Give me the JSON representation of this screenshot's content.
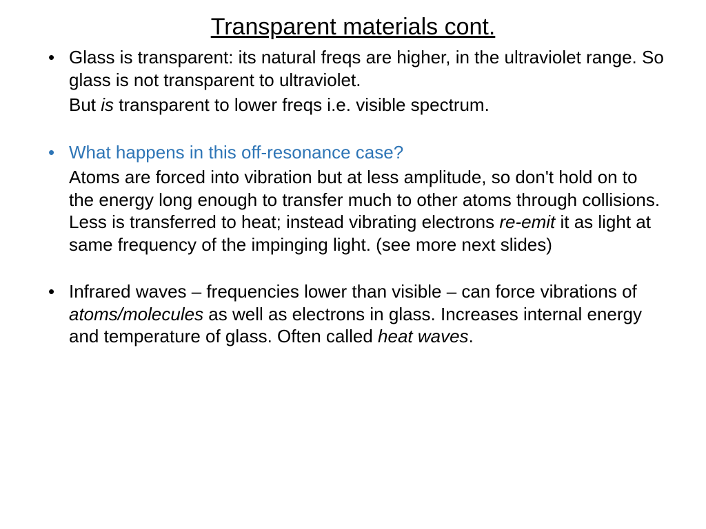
{
  "colors": {
    "background": "#ffffff",
    "text": "#000000",
    "accent": "#2e75b6"
  },
  "typography": {
    "title_fontsize": 34,
    "body_fontsize": 26,
    "font_family": "Arial"
  },
  "title": "Transparent materials cont.",
  "bullets": {
    "b1_line1": "Glass is transparent: its natural freqs are higher, in the ultraviolet range. So glass is not transparent to ultraviolet.",
    "b1_line2a": "But ",
    "b1_line2_italic": "is",
    "b1_line2b": " transparent to lower freqs i.e. visible spectrum.",
    "b2_question": "What happens in this off-resonance case?",
    "b2_answer_a": "Atoms are forced into vibration but at less amplitude, so don't hold on to the energy long enough to transfer much to other atoms through collisions. Less is transferred to heat; instead vibrating electrons ",
    "b2_answer_italic": "re-emit",
    "b2_answer_b": " it as light at same frequency of the impinging light. (see more next slides)",
    "b3_a": "Infrared waves – frequencies lower than visible – can force vibrations of ",
    "b3_italic1": "atoms/molecules",
    "b3_b": " as well as electrons in glass. Increases internal energy and temperature of glass. Often called ",
    "b3_italic2": "heat waves",
    "b3_c": "."
  }
}
